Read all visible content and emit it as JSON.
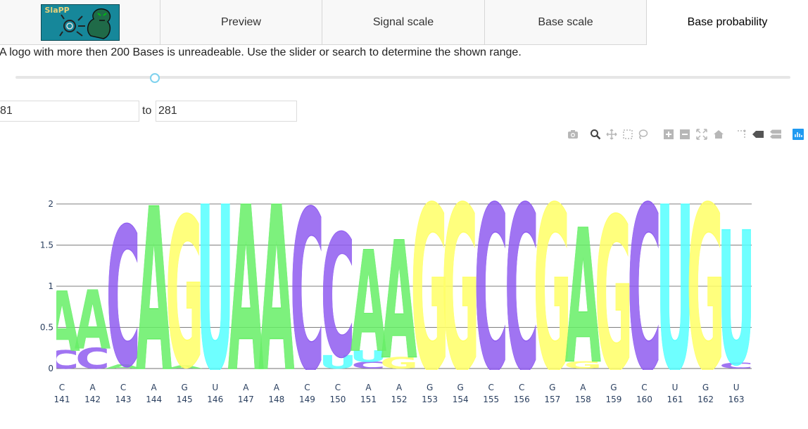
{
  "tabs": [
    {
      "label": "Preview"
    },
    {
      "label": "Signal scale"
    },
    {
      "label": "Base scale"
    },
    {
      "label": "Base probability",
      "active": true
    }
  ],
  "logo": {
    "text": "SlaPP"
  },
  "info_text": "A logo with more then 200 Bases is unreadeable. Use the slider or search to determine the shown range.",
  "range": {
    "from": "81",
    "to_label": "to",
    "to": "281",
    "slider_fraction": 0.18
  },
  "modebar": {
    "icons": [
      "camera-icon",
      "zoom-icon",
      "pan-icon",
      "box-select-icon",
      "lasso-icon",
      "zoom-in-icon",
      "zoom-out-icon",
      "autoscale-icon",
      "reset-axes-icon",
      "spike-lines-icon",
      "hover-closest-icon",
      "hover-compare-icon",
      "plotly-logo-icon"
    ]
  },
  "colors": {
    "A": "#66ee66",
    "C": "#8f5cf0",
    "G": "#ffff66",
    "U": "#55ffff"
  },
  "chart_data": {
    "type": "sequence-logo",
    "y_ticks": [
      0,
      0.5,
      1,
      1.5,
      2
    ],
    "ylim": [
      0,
      2
    ],
    "grid": true,
    "positions": [
      {
        "base": "C",
        "pos": "141",
        "stack": [
          [
            "C",
            0.22
          ],
          [
            "A",
            0.73
          ]
        ]
      },
      {
        "base": "A",
        "pos": "142",
        "stack": [
          [
            "C",
            0.25
          ],
          [
            "A",
            0.71
          ]
        ]
      },
      {
        "base": "C",
        "pos": "143",
        "stack": [
          [
            "A",
            0.05
          ],
          [
            "C",
            1.69
          ]
        ]
      },
      {
        "base": "A",
        "pos": "144",
        "stack": [
          [
            "A",
            1.98
          ]
        ]
      },
      {
        "base": "G",
        "pos": "145",
        "stack": [
          [
            "A",
            0.04
          ],
          [
            "G",
            1.82
          ]
        ]
      },
      {
        "base": "U",
        "pos": "146",
        "stack": [
          [
            "U",
            2.0
          ]
        ]
      },
      {
        "base": "A",
        "pos": "147",
        "stack": [
          [
            "A",
            2.0
          ]
        ]
      },
      {
        "base": "A",
        "pos": "148",
        "stack": [
          [
            "A",
            2.0
          ]
        ]
      },
      {
        "base": "C",
        "pos": "149",
        "stack": [
          [
            "C",
            1.95
          ]
        ]
      },
      {
        "base": "C",
        "pos": "150",
        "stack": [
          [
            "U",
            0.16
          ],
          [
            "C",
            1.49
          ]
        ]
      },
      {
        "base": "A",
        "pos": "151",
        "stack": [
          [
            "C",
            0.08
          ],
          [
            "U",
            0.14
          ],
          [
            "A",
            1.23
          ]
        ]
      },
      {
        "base": "A",
        "pos": "152",
        "stack": [
          [
            "G",
            0.14
          ],
          [
            "A",
            1.43
          ]
        ]
      },
      {
        "base": "G",
        "pos": "153",
        "stack": [
          [
            "G",
            2.0
          ]
        ]
      },
      {
        "base": "G",
        "pos": "154",
        "stack": [
          [
            "G",
            2.0
          ]
        ]
      },
      {
        "base": "C",
        "pos": "155",
        "stack": [
          [
            "C",
            2.0
          ]
        ]
      },
      {
        "base": "C",
        "pos": "156",
        "stack": [
          [
            "C",
            2.0
          ]
        ]
      },
      {
        "base": "G",
        "pos": "157",
        "stack": [
          [
            "G",
            2.0
          ]
        ]
      },
      {
        "base": "A",
        "pos": "158",
        "stack": [
          [
            "G",
            0.09
          ],
          [
            "A",
            1.63
          ]
        ]
      },
      {
        "base": "G",
        "pos": "159",
        "stack": [
          [
            "G",
            1.86
          ]
        ]
      },
      {
        "base": "C",
        "pos": "160",
        "stack": [
          [
            "C",
            2.0
          ]
        ]
      },
      {
        "base": "U",
        "pos": "161",
        "stack": [
          [
            "U",
            2.0
          ]
        ]
      },
      {
        "base": "G",
        "pos": "162",
        "stack": [
          [
            "G",
            2.0
          ]
        ]
      },
      {
        "base": "U",
        "pos": "163",
        "stack": [
          [
            "C",
            0.07
          ],
          [
            "U",
            1.62
          ]
        ]
      }
    ]
  }
}
